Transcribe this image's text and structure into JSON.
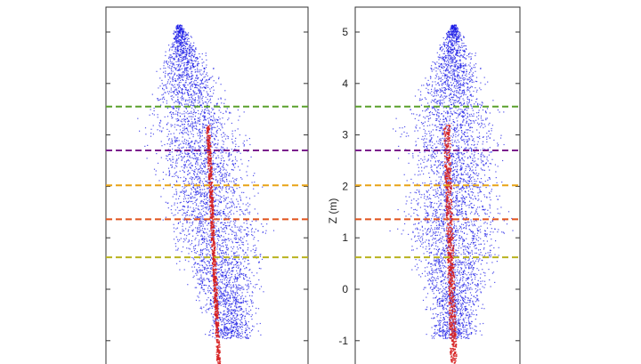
{
  "chart_data": [
    {
      "type": "scatter",
      "panel": "left",
      "title": "",
      "xlabel": "",
      "ylabel": "",
      "ylim": [
        -1.4,
        5.5
      ],
      "y_ticks": [
        -1,
        0,
        1,
        2,
        3,
        4,
        5
      ],
      "show_tick_labels": false,
      "layer_lines": [
        {
          "z": 3.55,
          "color": "#5aa02c"
        },
        {
          "z": 2.7,
          "color": "#7a1f8c"
        },
        {
          "z": 2.02,
          "color": "#e8a317"
        },
        {
          "z": 1.36,
          "color": "#e0521b"
        },
        {
          "z": 0.62,
          "color": "#b9b21e"
        }
      ],
      "series": [
        {
          "color": "#1a1ae6",
          "values_desc": "canopy point cloud"
        },
        {
          "color": "#d62020",
          "values_desc": "stem point cloud"
        }
      ]
    },
    {
      "type": "scatter",
      "panel": "right",
      "title": "",
      "xlabel": "",
      "ylabel": "Z (m)",
      "ylim": [
        -1.4,
        5.5
      ],
      "y_ticks": [
        -1,
        0,
        1,
        2,
        3,
        4,
        5
      ],
      "y_tick_labels": [
        "-1",
        "0",
        "1",
        "2",
        "3",
        "4",
        "5"
      ],
      "layer_lines": [
        {
          "z": 3.55,
          "color": "#5aa02c"
        },
        {
          "z": 2.7,
          "color": "#7a1f8c"
        },
        {
          "z": 2.02,
          "color": "#e8a317"
        },
        {
          "z": 1.36,
          "color": "#e0521b"
        },
        {
          "z": 0.62,
          "color": "#b9b21e"
        }
      ],
      "series": [
        {
          "color": "#1a1ae6",
          "values_desc": "canopy point cloud"
        },
        {
          "color": "#d62020",
          "values_desc": "stem point cloud"
        }
      ]
    }
  ]
}
